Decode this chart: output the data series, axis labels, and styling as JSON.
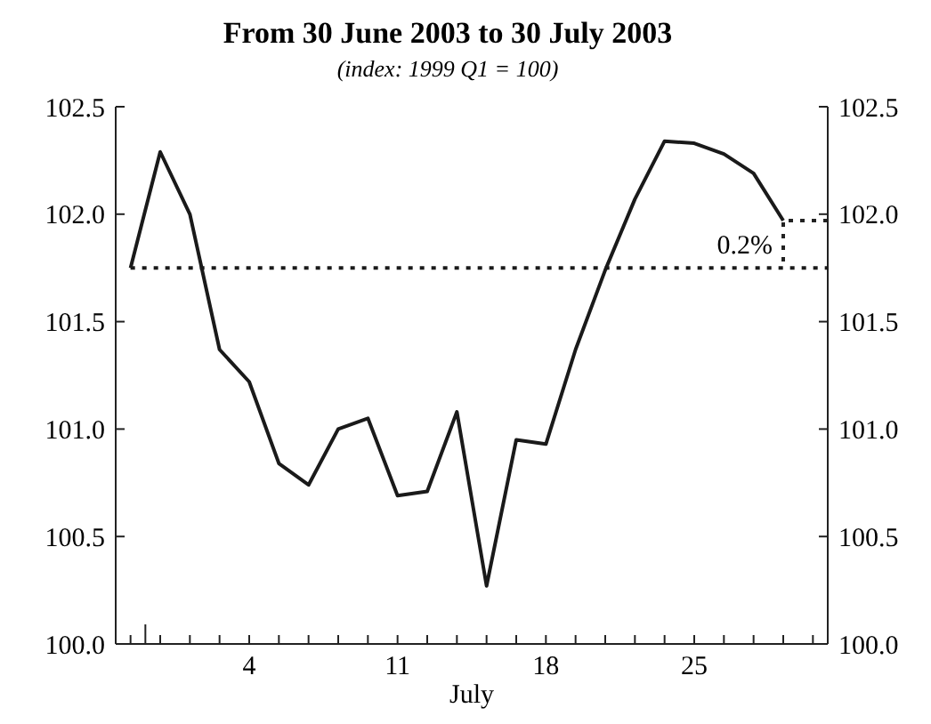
{
  "chart_data": {
    "type": "line",
    "title": "From 30 June 2003 to 30 July 2003",
    "subtitle": "(index: 1999 Q1 = 100)",
    "xlabel": "July",
    "categories": [
      null,
      null,
      null,
      null,
      "4",
      null,
      null,
      null,
      null,
      "11",
      null,
      null,
      null,
      null,
      "18",
      null,
      null,
      null,
      null,
      "25",
      null,
      null,
      null,
      null
    ],
    "series": [
      {
        "color": "#1a1a1a",
        "values": [
          101.75,
          102.29,
          102.0,
          101.37,
          101.22,
          100.84,
          100.74,
          101.0,
          101.05,
          100.69,
          100.71,
          101.08,
          100.27,
          100.95,
          100.93,
          101.37,
          101.74,
          102.07,
          102.34,
          102.33,
          102.28,
          102.19,
          101.97,
          null
        ]
      }
    ],
    "ylim": [
      100,
      102.5
    ],
    "yticks": [
      {
        "value": 100,
        "label": "100.0"
      },
      102.5,
      {
        "value": 102,
        "label": "102.0"
      },
      101.5,
      {
        "value": 101,
        "label": "101.0"
      },
      100.5
    ],
    "y2lim": [
      100,
      102.5
    ],
    "y2ticks": [
      {
        "value": 100,
        "label": "100.0"
      },
      102.5,
      {
        "value": 102,
        "label": "102.0"
      },
      101.5,
      {
        "value": 101,
        "label": "101.0"
      },
      100.5
    ],
    "ref_lines": [
      {
        "axis": "y",
        "value": 101.75,
        "line_style": "dotted",
        "color": "#1a1a1a"
      }
    ],
    "annotations": [
      "0.2%"
    ],
    "marker": "none",
    "line_style": "solid"
  }
}
